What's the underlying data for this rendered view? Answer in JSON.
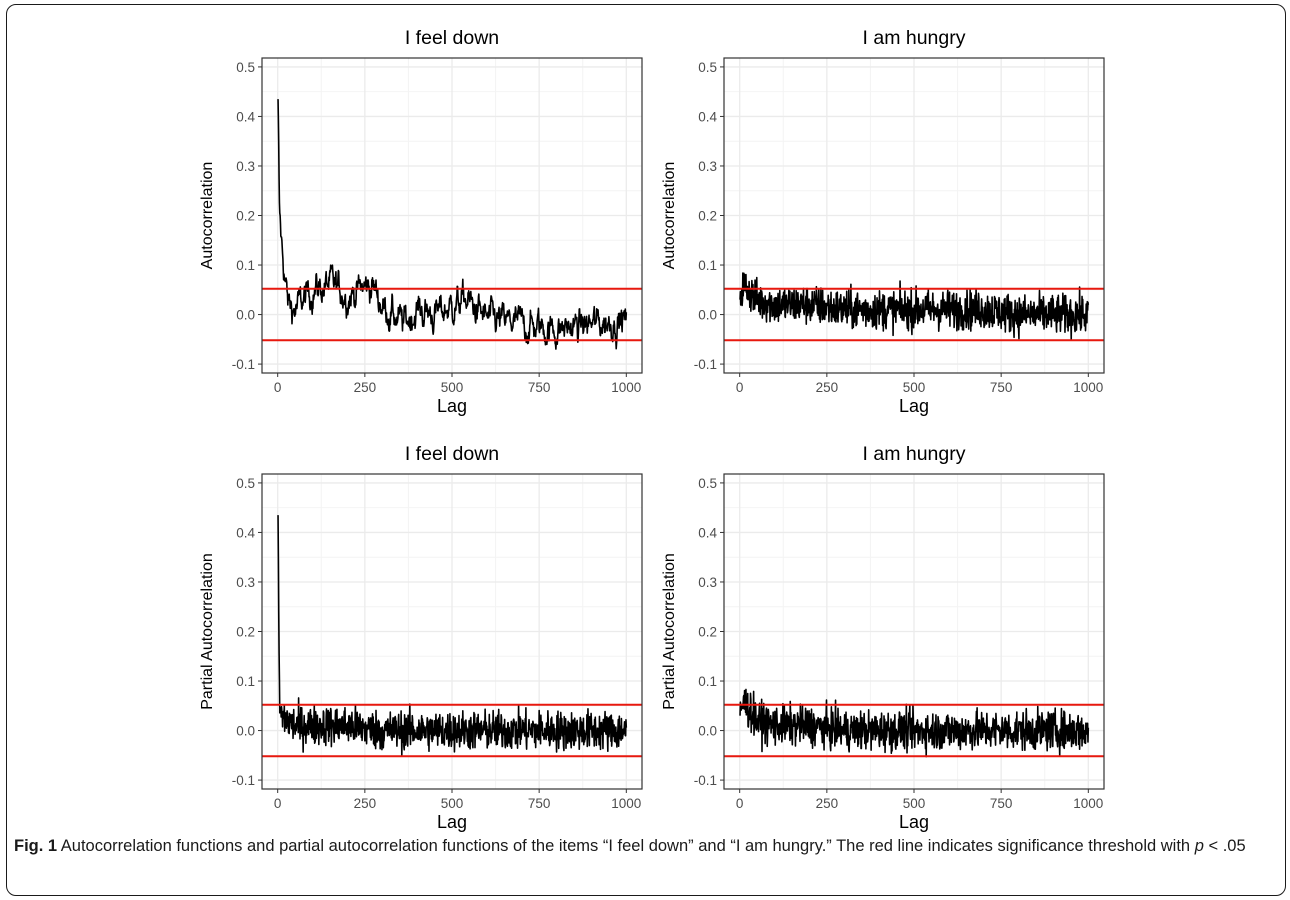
{
  "figure": {
    "label": "Fig. 1",
    "caption_a": "Autocorrelation functions and partial autocorrelation functions of the items “I feel down” and “I am hungry.” The red line indicates significance threshold with ",
    "caption_p": "p",
    "caption_b": " < .05"
  },
  "colors": {
    "line": "#000000",
    "threshold": "#e8180e",
    "grid_major": "#ebebeb",
    "grid_minor": "#f4f4f4",
    "panel_border": "#333333"
  },
  "chart_data": [
    {
      "type": "line",
      "title": "I feel down",
      "xlabel": "Lag",
      "ylabel": "Autocorrelation",
      "xlim": [
        0,
        1000
      ],
      "ylim": [
        -0.1,
        0.5
      ],
      "xticks": [
        "0",
        "250",
        "500",
        "750",
        "1000"
      ],
      "yticks": [
        "-0.1",
        "0.0",
        "0.1",
        "0.2",
        "0.3",
        "0.4",
        "0.5"
      ],
      "threshold": [
        0.052,
        -0.052
      ],
      "series": [
        {
          "x": [
            1,
            5,
            10,
            20,
            30,
            50,
            100,
            150,
            200,
            270,
            300,
            360,
            400,
            450,
            540,
            600,
            700,
            800,
            900,
            1000
          ],
          "values": [
            0.435,
            0.2,
            0.15,
            0.08,
            0.02,
            0.01,
            0.05,
            0.06,
            0.04,
            0.06,
            0.02,
            -0.02,
            0.01,
            0.0,
            0.03,
            -0.01,
            -0.02,
            -0.03,
            -0.02,
            -0.01
          ]
        }
      ]
    },
    {
      "type": "line",
      "title": "I am hungry",
      "xlabel": "Lag",
      "ylabel": "Autocorrelation",
      "xlim": [
        0,
        1000
      ],
      "ylim": [
        -0.1,
        0.5
      ],
      "xticks": [
        "0",
        "250",
        "500",
        "750",
        "1000"
      ],
      "yticks": [
        "-0.1",
        "0.0",
        "0.1",
        "0.2",
        "0.3",
        "0.4",
        "0.5"
      ],
      "threshold": [
        0.052,
        -0.052
      ],
      "series": [
        {
          "x": [
            1,
            10,
            50,
            100,
            200,
            300,
            400,
            500,
            600,
            700,
            800,
            900,
            1000
          ],
          "values": [
            0.03,
            0.06,
            0.03,
            0.02,
            0.02,
            0.01,
            0.01,
            0.01,
            0.01,
            0.01,
            0.0,
            0.0,
            0.0
          ]
        }
      ]
    },
    {
      "type": "line",
      "title": "I feel down",
      "xlabel": "Lag",
      "ylabel": "Partial Autocorrelation",
      "xlim": [
        0,
        1000
      ],
      "ylim": [
        -0.1,
        0.5
      ],
      "xticks": [
        "0",
        "250",
        "500",
        "750",
        "1000"
      ],
      "yticks": [
        "-0.1",
        "0.0",
        "0.1",
        "0.2",
        "0.3",
        "0.4",
        "0.5"
      ],
      "threshold": [
        0.052,
        -0.052
      ],
      "series": [
        {
          "x": [
            1,
            5,
            10,
            50,
            100,
            200,
            300,
            400,
            500,
            600,
            700,
            800,
            900,
            1000
          ],
          "values": [
            0.435,
            0.06,
            0.03,
            0.01,
            0.01,
            0.01,
            0.0,
            0.0,
            0.0,
            0.0,
            0.0,
            0.0,
            0.0,
            0.0
          ]
        }
      ]
    },
    {
      "type": "line",
      "title": "I am hungry",
      "xlabel": "Lag",
      "ylabel": "Partial Autocorrelation",
      "xlim": [
        0,
        1000
      ],
      "ylim": [
        -0.1,
        0.5
      ],
      "xticks": [
        "0",
        "250",
        "500",
        "750",
        "1000"
      ],
      "yticks": [
        "-0.1",
        "0.0",
        "0.1",
        "0.2",
        "0.3",
        "0.4",
        "0.5"
      ],
      "threshold": [
        0.052,
        -0.052
      ],
      "series": [
        {
          "x": [
            1,
            10,
            50,
            100,
            200,
            300,
            400,
            500,
            600,
            700,
            800,
            900,
            1000
          ],
          "values": [
            0.03,
            0.06,
            0.02,
            0.01,
            0.01,
            0.0,
            0.0,
            0.0,
            0.0,
            0.0,
            0.0,
            0.0,
            0.0
          ]
        }
      ]
    }
  ]
}
